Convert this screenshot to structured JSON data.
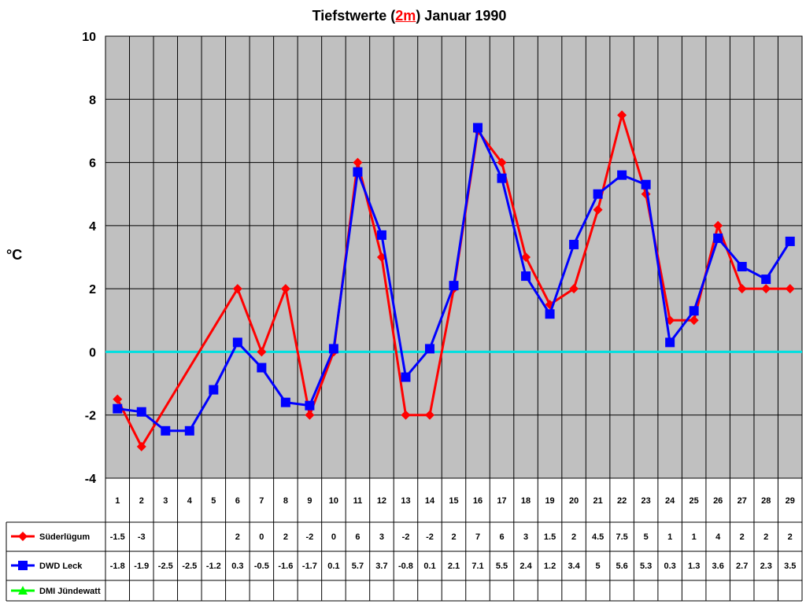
{
  "title": {
    "prefix": "Tiefstwerte (",
    "highlight": "2m",
    "suffix": ") Januar 1990"
  },
  "chart_data": {
    "type": "line",
    "title": "Tiefstwerte (2m) Januar 1990",
    "xlabel": "",
    "ylabel": "°C",
    "ylim": [
      -4,
      10
    ],
    "yticks": [
      -4,
      -2,
      0,
      2,
      4,
      6,
      8,
      10
    ],
    "grid": true,
    "zero_line_color": "#00e0e0",
    "plot_background": "#c0c0c0",
    "categories": [
      1,
      2,
      3,
      4,
      5,
      6,
      7,
      8,
      9,
      10,
      11,
      12,
      13,
      14,
      15,
      16,
      17,
      18,
      19,
      20,
      21,
      22,
      23,
      24,
      25,
      26,
      27,
      28,
      29
    ],
    "series": [
      {
        "name": "Süderlügum",
        "color": "#ff0000",
        "marker": "diamond",
        "values": [
          -1.5,
          -3,
          null,
          null,
          null,
          2,
          0,
          2,
          -2,
          0,
          6,
          3,
          -2,
          -2,
          2,
          7,
          6,
          3,
          1.5,
          2,
          4.5,
          7.5,
          5,
          1,
          1,
          4,
          2,
          2,
          2
        ]
      },
      {
        "name": "DWD Leck",
        "color": "#0000ff",
        "marker": "square",
        "values": [
          -1.8,
          -1.9,
          -2.5,
          -2.5,
          -1.2,
          0.3,
          -0.5,
          -1.6,
          -1.7,
          0.1,
          5.7,
          3.7,
          -0.8,
          0.1,
          2.1,
          7.1,
          5.5,
          2.4,
          1.2,
          3.4,
          5,
          5.6,
          5.3,
          0.3,
          1.3,
          3.6,
          2.7,
          2.3,
          3.5
        ]
      },
      {
        "name": "DMI Jündewatt",
        "color": "#00ff00",
        "marker": "triangle",
        "values": [
          null,
          null,
          null,
          null,
          null,
          null,
          null,
          null,
          null,
          null,
          null,
          null,
          null,
          null,
          null,
          null,
          null,
          null,
          null,
          null,
          null,
          null,
          null,
          null,
          null,
          null,
          null,
          null,
          null
        ]
      }
    ]
  }
}
